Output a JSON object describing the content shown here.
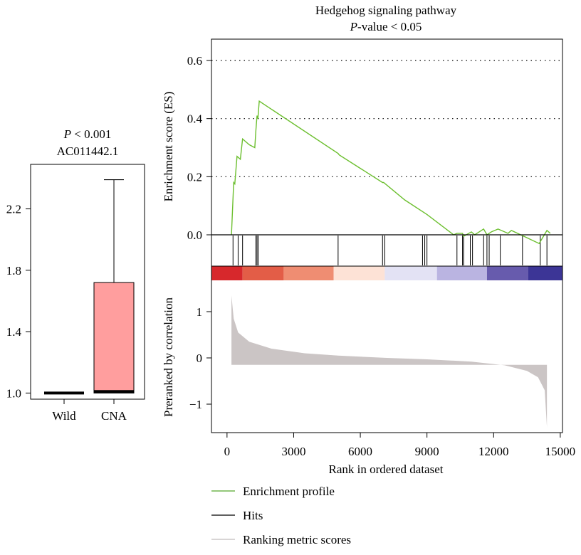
{
  "chart_data": [
    {
      "type": "box",
      "title_p_italic": "P",
      "title_p_rest": " < 0.001",
      "title": "AC011442.1",
      "categories": [
        "Wild",
        "CNA"
      ],
      "boxes": [
        {
          "name": "Wild",
          "whisker_low": 1.0,
          "q1": 1.0,
          "median": 1.0,
          "q3": 1.0,
          "whisker_high": 1.0,
          "color": "#000000"
        },
        {
          "name": "CNA",
          "whisker_low": 1.0,
          "q1": 1.0,
          "median": 1.01,
          "q3": 1.72,
          "whisker_high": 2.39,
          "color": "#ff9e9e"
        }
      ],
      "yticks": [
        "1.0",
        "1.4",
        "1.8",
        "2.2"
      ],
      "ylim": [
        0.96,
        2.49
      ]
    },
    {
      "type": "line",
      "title": "Hedgehog signaling pathway",
      "subtitle_p_italic": "P",
      "subtitle_rest": "-value < 0.05",
      "ylabel": "Enrichment score (ES)",
      "ylabel_lower": "Preranked by correlation",
      "xlabel": "Rank in ordered dataset",
      "xticks": [
        "0",
        "3000",
        "6000",
        "9000",
        "12000",
        "15000"
      ],
      "es_yticks": [
        "0.0",
        "0.2",
        "0.4",
        "0.6"
      ],
      "metric_yticks": [
        "-1",
        "0",
        "1"
      ],
      "xlim": [
        -700,
        15100
      ],
      "es_ylim": [
        0.0,
        0.6
      ],
      "metric_ylim": [
        -1.6,
        1.5
      ],
      "grid": "dotted at 0.2, 0.4, 0.6",
      "es_curve": [
        [
          200,
          0.0
        ],
        [
          300,
          0.18
        ],
        [
          350,
          0.175
        ],
        [
          450,
          0.27
        ],
        [
          600,
          0.26
        ],
        [
          700,
          0.33
        ],
        [
          1000,
          0.31
        ],
        [
          1250,
          0.3
        ],
        [
          1300,
          0.36
        ],
        [
          1350,
          0.41
        ],
        [
          1390,
          0.4
        ],
        [
          1450,
          0.46
        ],
        [
          5000,
          0.28
        ],
        [
          5050,
          0.275
        ],
        [
          7000,
          0.18
        ],
        [
          7050,
          0.18
        ],
        [
          8000,
          0.12
        ],
        [
          9000,
          0.07
        ],
        [
          10200,
          0.0
        ],
        [
          10350,
          0.005
        ],
        [
          10600,
          0.005
        ],
        [
          10650,
          -0.005
        ],
        [
          11000,
          0.01
        ],
        [
          11150,
          0.0
        ],
        [
          11550,
          0.02
        ],
        [
          11700,
          0.0
        ],
        [
          11900,
          0.01
        ],
        [
          12200,
          0.02
        ],
        [
          12650,
          0.005
        ],
        [
          12800,
          0.015
        ],
        [
          13500,
          -0.01
        ],
        [
          14050,
          -0.03
        ],
        [
          14400,
          0.015
        ],
        [
          14550,
          0.005
        ]
      ],
      "hits": [
        270,
        500,
        700,
        1300,
        1350,
        1400,
        5000,
        7000,
        7100,
        8800,
        8900,
        9000,
        10350,
        10600,
        10650,
        10950,
        11050,
        11550,
        11700,
        11800,
        12300,
        13300,
        14100,
        14400
      ],
      "color_bar": [
        "#d7282c",
        "#e35d47",
        "#ef8d72",
        "#fde2d6",
        "#e3e2f4",
        "#bab4e1",
        "#675bad",
        "#3c3596"
      ],
      "color_bar_bounds": [
        0,
        700,
        2550,
        4800,
        7100,
        9450,
        11700,
        13550,
        14850
      ],
      "metric_profile": [
        [
          200,
          1.35
        ],
        [
          300,
          0.85
        ],
        [
          500,
          0.55
        ],
        [
          1000,
          0.35
        ],
        [
          2000,
          0.2
        ],
        [
          3500,
          0.1
        ],
        [
          5000,
          0.05
        ],
        [
          7200,
          0.0
        ],
        [
          9000,
          -0.03
        ],
        [
          11000,
          -0.08
        ],
        [
          12500,
          -0.16
        ],
        [
          13500,
          -0.28
        ],
        [
          14000,
          -0.42
        ],
        [
          14300,
          -0.7
        ],
        [
          14400,
          -1.5
        ]
      ],
      "legend": [
        {
          "label": "Enrichment profile",
          "color": "#55a82a"
        },
        {
          "label": "Hits",
          "color": "#000000"
        },
        {
          "label": "Ranking metric scores",
          "color": "#c0bcbc"
        }
      ],
      "colors": {
        "es_line": "#6cbf2f",
        "metric_fill": "#cbc5c5",
        "hit": "#000000"
      }
    }
  ]
}
